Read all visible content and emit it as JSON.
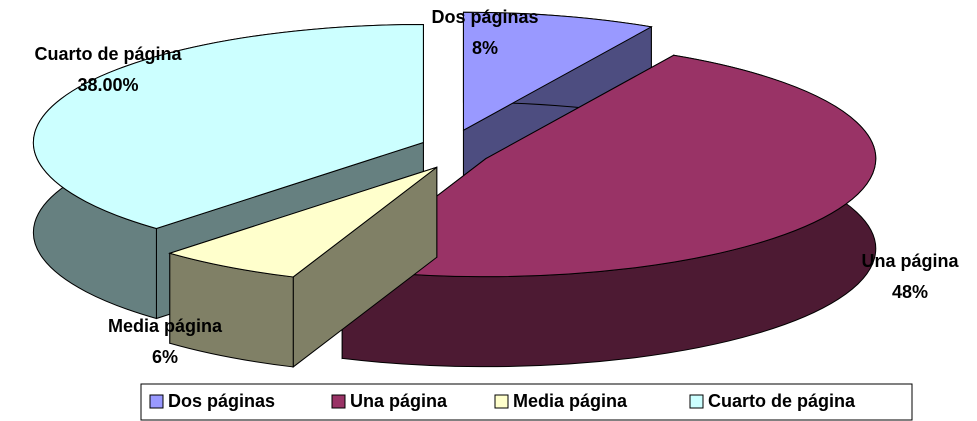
{
  "chart_data": {
    "type": "pie3d",
    "categories": [
      "Dos páginas",
      "Una página",
      "Media página",
      "Cuarto de página"
    ],
    "values": [
      8,
      48,
      6,
      38
    ],
    "value_labels": [
      "8%",
      "48%",
      "6%",
      "38.00%"
    ],
    "colors": [
      "#9999ff",
      "#993366",
      "#ffffcc",
      "#ccffff"
    ],
    "legend": "bottom"
  }
}
